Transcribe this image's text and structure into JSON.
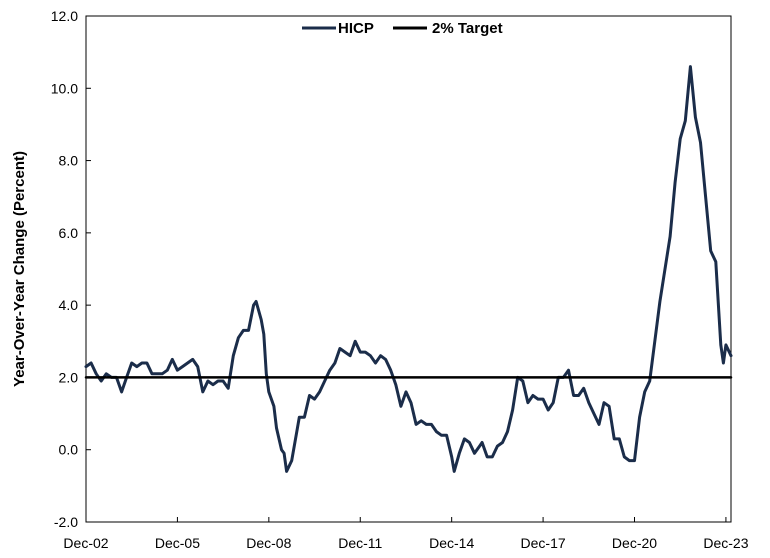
{
  "chart_data": {
    "type": "line",
    "title": "",
    "xlabel": "",
    "ylabel": "Year-Over-Year Change (Percent)",
    "ylim": [
      -2.0,
      12.0
    ],
    "y_ticks": [
      "-2.0",
      "0.0",
      "2.0",
      "4.0",
      "6.0",
      "8.0",
      "10.0",
      "12.0"
    ],
    "x_tick_labels": [
      "Dec-02",
      "Dec-05",
      "Dec-08",
      "Dec-11",
      "Dec-14",
      "Dec-17",
      "Dec-20",
      "Dec-23"
    ],
    "x_range": [
      "2002-12",
      "2024-02"
    ],
    "grid": false,
    "legend_position": "top-center",
    "series": [
      {
        "name": "HICP",
        "color": "#1b2d4a",
        "points": [
          [
            "2002-12",
            2.3
          ],
          [
            "2003-02",
            2.4
          ],
          [
            "2003-04",
            2.1
          ],
          [
            "2003-06",
            1.9
          ],
          [
            "2003-08",
            2.1
          ],
          [
            "2003-10",
            2.0
          ],
          [
            "2003-12",
            2.0
          ],
          [
            "2004-02",
            1.6
          ],
          [
            "2004-04",
            2.0
          ],
          [
            "2004-06",
            2.4
          ],
          [
            "2004-08",
            2.3
          ],
          [
            "2004-10",
            2.4
          ],
          [
            "2004-12",
            2.4
          ],
          [
            "2005-02",
            2.1
          ],
          [
            "2005-04",
            2.1
          ],
          [
            "2005-06",
            2.1
          ],
          [
            "2005-08",
            2.2
          ],
          [
            "2005-10",
            2.5
          ],
          [
            "2005-12",
            2.2
          ],
          [
            "2006-02",
            2.3
          ],
          [
            "2006-04",
            2.4
          ],
          [
            "2006-06",
            2.5
          ],
          [
            "2006-08",
            2.3
          ],
          [
            "2006-10",
            1.6
          ],
          [
            "2006-12",
            1.9
          ],
          [
            "2007-02",
            1.8
          ],
          [
            "2007-04",
            1.9
          ],
          [
            "2007-06",
            1.9
          ],
          [
            "2007-08",
            1.7
          ],
          [
            "2007-10",
            2.6
          ],
          [
            "2007-12",
            3.1
          ],
          [
            "2008-02",
            3.3
          ],
          [
            "2008-04",
            3.3
          ],
          [
            "2008-06",
            4.0
          ],
          [
            "2008-07",
            4.1
          ],
          [
            "2008-09",
            3.6
          ],
          [
            "2008-10",
            3.2
          ],
          [
            "2008-11",
            2.1
          ],
          [
            "2008-12",
            1.6
          ],
          [
            "2009-02",
            1.2
          ],
          [
            "2009-03",
            0.6
          ],
          [
            "2009-05",
            0.0
          ],
          [
            "2009-06",
            -0.1
          ],
          [
            "2009-07",
            -0.6
          ],
          [
            "2009-09",
            -0.3
          ],
          [
            "2009-11",
            0.5
          ],
          [
            "2009-12",
            0.9
          ],
          [
            "2010-02",
            0.9
          ],
          [
            "2010-04",
            1.5
          ],
          [
            "2010-06",
            1.4
          ],
          [
            "2010-08",
            1.6
          ],
          [
            "2010-10",
            1.9
          ],
          [
            "2010-12",
            2.2
          ],
          [
            "2011-02",
            2.4
          ],
          [
            "2011-04",
            2.8
          ],
          [
            "2011-06",
            2.7
          ],
          [
            "2011-08",
            2.6
          ],
          [
            "2011-10",
            3.0
          ],
          [
            "2011-12",
            2.7
          ],
          [
            "2012-02",
            2.7
          ],
          [
            "2012-04",
            2.6
          ],
          [
            "2012-06",
            2.4
          ],
          [
            "2012-08",
            2.6
          ],
          [
            "2012-10",
            2.5
          ],
          [
            "2012-12",
            2.2
          ],
          [
            "2013-02",
            1.8
          ],
          [
            "2013-04",
            1.2
          ],
          [
            "2013-06",
            1.6
          ],
          [
            "2013-08",
            1.3
          ],
          [
            "2013-10",
            0.7
          ],
          [
            "2013-12",
            0.8
          ],
          [
            "2014-02",
            0.7
          ],
          [
            "2014-04",
            0.7
          ],
          [
            "2014-06",
            0.5
          ],
          [
            "2014-08",
            0.4
          ],
          [
            "2014-10",
            0.4
          ],
          [
            "2014-12",
            -0.2
          ],
          [
            "2015-01",
            -0.6
          ],
          [
            "2015-03",
            -0.1
          ],
          [
            "2015-05",
            0.3
          ],
          [
            "2015-07",
            0.2
          ],
          [
            "2015-09",
            -0.1
          ],
          [
            "2015-11",
            0.1
          ],
          [
            "2015-12",
            0.2
          ],
          [
            "2016-02",
            -0.2
          ],
          [
            "2016-04",
            -0.2
          ],
          [
            "2016-06",
            0.1
          ],
          [
            "2016-08",
            0.2
          ],
          [
            "2016-10",
            0.5
          ],
          [
            "2016-12",
            1.1
          ],
          [
            "2017-02",
            2.0
          ],
          [
            "2017-04",
            1.9
          ],
          [
            "2017-06",
            1.3
          ],
          [
            "2017-08",
            1.5
          ],
          [
            "2017-10",
            1.4
          ],
          [
            "2017-12",
            1.4
          ],
          [
            "2018-02",
            1.1
          ],
          [
            "2018-04",
            1.3
          ],
          [
            "2018-06",
            2.0
          ],
          [
            "2018-08",
            2.0
          ],
          [
            "2018-10",
            2.2
          ],
          [
            "2018-12",
            1.5
          ],
          [
            "2019-02",
            1.5
          ],
          [
            "2019-04",
            1.7
          ],
          [
            "2019-06",
            1.3
          ],
          [
            "2019-08",
            1.0
          ],
          [
            "2019-10",
            0.7
          ],
          [
            "2019-12",
            1.3
          ],
          [
            "2020-02",
            1.2
          ],
          [
            "2020-04",
            0.3
          ],
          [
            "2020-06",
            0.3
          ],
          [
            "2020-08",
            -0.2
          ],
          [
            "2020-10",
            -0.3
          ],
          [
            "2020-12",
            -0.3
          ],
          [
            "2021-02",
            0.9
          ],
          [
            "2021-04",
            1.6
          ],
          [
            "2021-06",
            1.9
          ],
          [
            "2021-08",
            3.0
          ],
          [
            "2021-10",
            4.1
          ],
          [
            "2021-12",
            5.0
          ],
          [
            "2022-02",
            5.9
          ],
          [
            "2022-04",
            7.4
          ],
          [
            "2022-06",
            8.6
          ],
          [
            "2022-08",
            9.1
          ],
          [
            "2022-10",
            10.6
          ],
          [
            "2022-12",
            9.2
          ],
          [
            "2023-02",
            8.5
          ],
          [
            "2023-04",
            7.0
          ],
          [
            "2023-06",
            5.5
          ],
          [
            "2023-08",
            5.2
          ],
          [
            "2023-10",
            2.9
          ],
          [
            "2023-11",
            2.4
          ],
          [
            "2023-12",
            2.9
          ],
          [
            "2024-02",
            2.6
          ]
        ]
      },
      {
        "name": "2% Target",
        "color": "#000000",
        "points": [
          [
            "2002-12",
            2.0
          ],
          [
            "2024-02",
            2.0
          ]
        ]
      }
    ]
  }
}
